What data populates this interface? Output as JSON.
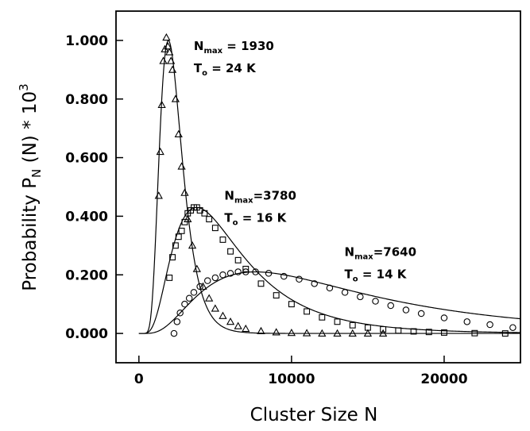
{
  "chart_data": {
    "type": "scatter",
    "title": "",
    "xlabel": "Cluster Size N",
    "ylabel": {
      "main": "Probability P",
      "sub": "N",
      "arg": " (N)  * 10",
      "sup": "3"
    },
    "xlim": [
      -1500,
      25000
    ],
    "ylim": [
      -0.1,
      1.1
    ],
    "xticks": [
      0,
      10000,
      20000
    ],
    "xtick_labels": [
      "0",
      "10000",
      "20000"
    ],
    "yticks": [
      0.0,
      0.2,
      0.4,
      0.6,
      0.8,
      1.0
    ],
    "ytick_labels": [
      "0.000",
      "0.200",
      "0.400",
      "0.600",
      "0.800",
      "1.000"
    ],
    "grid": false,
    "legend": "none",
    "series": [
      {
        "marker": "triangle",
        "fit": {
          "peak_x": 1930,
          "peak_y": 1.0
        },
        "annotation": {
          "n_label": "N",
          "n_sub": "max",
          "n_value": " = 1930",
          "t_label": "T",
          "t_sub": "o",
          "t_value": "  = 24 K"
        },
        "x": [
          1300,
          1400,
          1500,
          1600,
          1700,
          1800,
          1900,
          2000,
          2100,
          2200,
          2400,
          2600,
          2800,
          3000,
          3200,
          3500,
          3800,
          4200,
          4600,
          5000,
          5500,
          6000,
          6500,
          7000,
          8000,
          9000,
          10000,
          11000,
          12000,
          13000,
          14000,
          15000,
          16000
        ],
        "y": [
          0.47,
          0.62,
          0.78,
          0.93,
          0.97,
          1.01,
          0.98,
          0.96,
          0.93,
          0.9,
          0.8,
          0.68,
          0.57,
          0.48,
          0.39,
          0.3,
          0.22,
          0.16,
          0.12,
          0.085,
          0.06,
          0.04,
          0.025,
          0.016,
          0.008,
          0.004,
          0.002,
          0.001,
          0.0,
          0.0,
          0.0,
          0.0,
          0.0
        ]
      },
      {
        "marker": "square",
        "fit": {
          "peak_x": 3780,
          "peak_y": 0.43
        },
        "annotation": {
          "n_label": "N",
          "n_sub": "max",
          "n_value": "=3780",
          "t_label": "T",
          "t_sub": "o",
          "t_value": "  = 16 K"
        },
        "x": [
          2000,
          2200,
          2400,
          2600,
          2800,
          3000,
          3200,
          3400,
          3600,
          3800,
          4000,
          4300,
          4600,
          5000,
          5500,
          6000,
          6500,
          7000,
          8000,
          9000,
          10000,
          11000,
          12000,
          13000,
          14000,
          15000,
          16000,
          17000,
          18000,
          19000,
          20000,
          22000,
          24000
        ],
        "y": [
          0.19,
          0.26,
          0.3,
          0.33,
          0.35,
          0.38,
          0.41,
          0.42,
          0.43,
          0.43,
          0.42,
          0.41,
          0.39,
          0.36,
          0.32,
          0.28,
          0.25,
          0.22,
          0.17,
          0.13,
          0.1,
          0.075,
          0.055,
          0.04,
          0.028,
          0.02,
          0.014,
          0.01,
          0.007,
          0.005,
          0.003,
          0.001,
          0.0
        ]
      },
      {
        "marker": "circle",
        "fit": {
          "peak_x": 7640,
          "peak_y": 0.21
        },
        "annotation": {
          "n_label": "N",
          "n_sub": "max",
          "n_value": "=7640",
          "t_label": "T",
          "t_sub": "o",
          "t_value": "  = 14 K"
        },
        "x": [
          2300,
          2500,
          2700,
          3000,
          3300,
          3600,
          4000,
          4500,
          5000,
          5500,
          6000,
          6500,
          7000,
          7640,
          8500,
          9500,
          10500,
          11500,
          12500,
          13500,
          14500,
          15500,
          16500,
          17500,
          18500,
          20000,
          21500,
          23000,
          24500
        ],
        "y": [
          0.0,
          0.04,
          0.07,
          0.1,
          0.12,
          0.14,
          0.16,
          0.18,
          0.19,
          0.2,
          0.205,
          0.21,
          0.21,
          0.21,
          0.205,
          0.195,
          0.185,
          0.17,
          0.155,
          0.14,
          0.125,
          0.11,
          0.095,
          0.08,
          0.068,
          0.053,
          0.04,
          0.03,
          0.02
        ]
      }
    ]
  }
}
